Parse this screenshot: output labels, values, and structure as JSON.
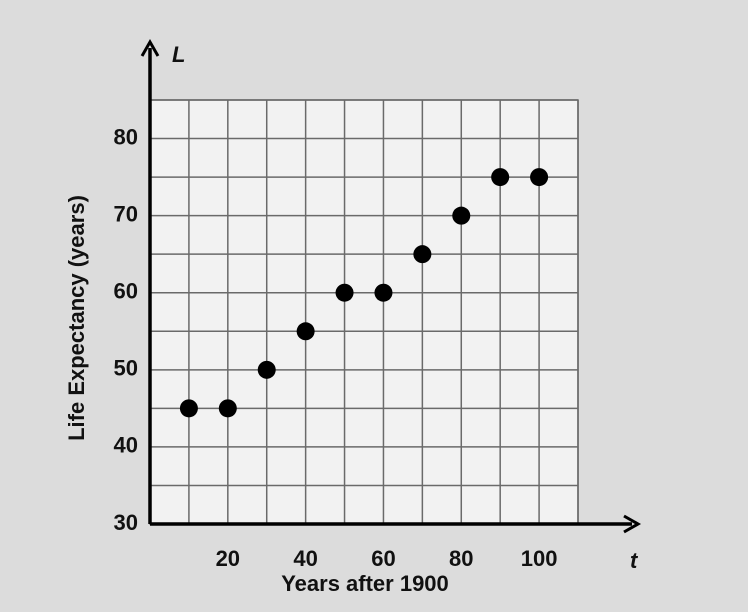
{
  "chart_data": {
    "type": "scatter",
    "x_label": "Years after 1900",
    "y_label": "Life Expectancy (years)",
    "x_axis_symbol": "t",
    "y_axis_symbol": "L",
    "x": [
      10,
      20,
      30,
      40,
      50,
      60,
      70,
      80,
      90,
      100
    ],
    "values": [
      45,
      45,
      50,
      55,
      60,
      60,
      65,
      70,
      75,
      75
    ],
    "color": "#000000",
    "xlim": [
      0,
      110
    ],
    "ylim": [
      30,
      85
    ],
    "xticks": [
      20,
      40,
      60,
      80,
      100
    ],
    "yticks": [
      30,
      40,
      50,
      60,
      70,
      80
    ],
    "minor_xticks": [
      10,
      30,
      50,
      70,
      90,
      110
    ],
    "minor_yticks": [
      35,
      45,
      55,
      65,
      75,
      85
    ],
    "grid": true
  }
}
